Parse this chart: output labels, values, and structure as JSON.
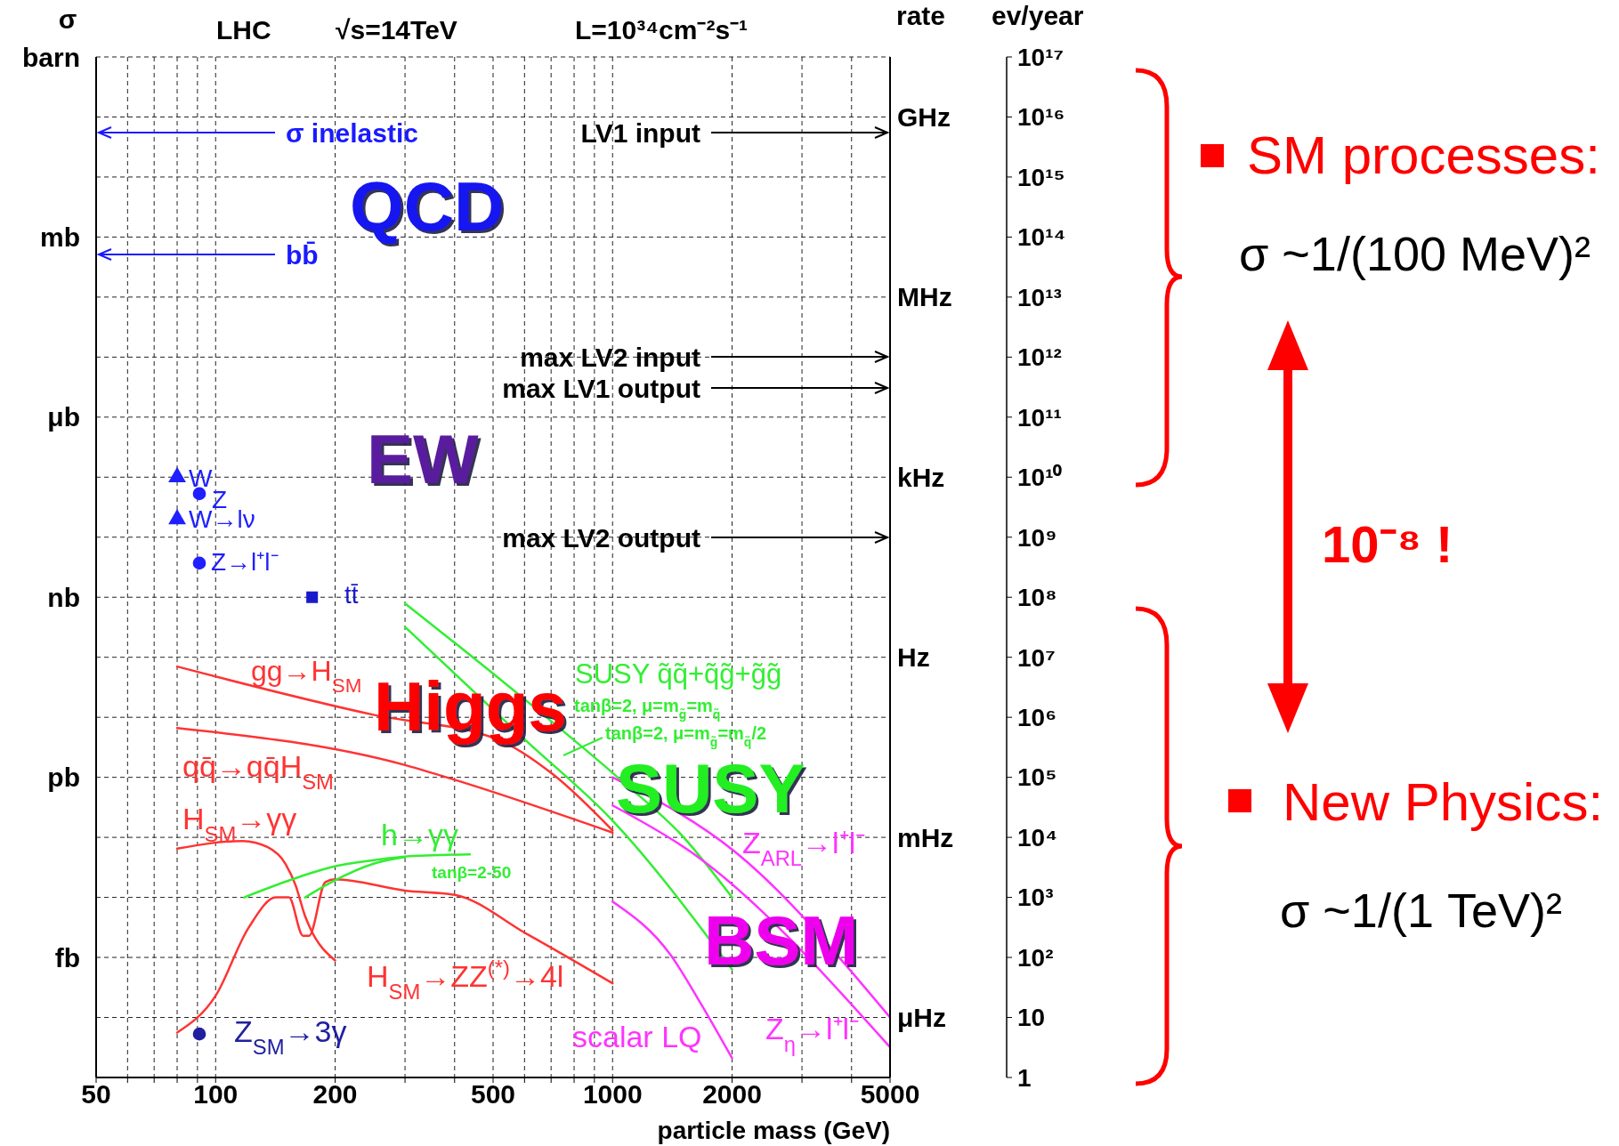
{
  "chart_data": {
    "type": "line",
    "xlabel": "particle mass (GeV)",
    "ylabel": "ev/year",
    "xlim": [
      50,
      5000
    ],
    "xticks": [
      50,
      {
        "value": 60,
        "label": null
      },
      {
        "value": 70,
        "label": null
      },
      {
        "value": 80,
        "label": null
      },
      {
        "value": 90,
        "label": null
      },
      100,
      200,
      {
        "value": 300,
        "label": null
      },
      {
        "value": 400,
        "label": null
      },
      500,
      {
        "value": 600,
        "label": null
      },
      {
        "value": 700,
        "label": null
      },
      {
        "value": 800,
        "label": null
      },
      {
        "value": 900,
        "label": null
      },
      1000,
      2000,
      {
        "value": 3000,
        "label": null
      },
      {
        "value": 4000,
        "label": null
      },
      5000
    ],
    "ylim": [
      1,
      1e+17
    ],
    "yticks": [
      1,
      10,
      {
        "value": 100.0,
        "label": "10²"
      },
      {
        "value": 1000.0,
        "label": "10³"
      },
      {
        "value": 10000.0,
        "label": "10⁴"
      },
      {
        "value": 100000.0,
        "label": "10⁵"
      },
      {
        "value": 1000000.0,
        "label": "10⁶"
      },
      {
        "value": 10000000.0,
        "label": "10⁷"
      },
      {
        "value": 100000000.0,
        "label": "10⁸"
      },
      {
        "value": 1000000000.0,
        "label": "10⁹"
      },
      {
        "value": 10000000000.0,
        "label": "10¹⁰"
      },
      {
        "value": 100000000000.0,
        "label": "10¹¹"
      },
      {
        "value": 1000000000000.0,
        "label": "10¹²"
      },
      {
        "value": 10000000000000.0,
        "label": "10¹³"
      },
      {
        "value": 100000000000000.0,
        "label": "10¹⁴"
      },
      {
        "value": 1000000000000000.0,
        "label": "10¹⁵"
      },
      {
        "value": 1e+16,
        "label": "10¹⁶"
      },
      {
        "value": 1e+17,
        "label": "10¹⁷"
      }
    ],
    "log": "xy",
    "grid": true,
    "series": [
      {
        "name": "gg→H$_{SM}$",
        "color": "#ff3333",
        "x": [
          80,
          250,
          512,
          710,
          1000
        ],
        "values": [
          7000000.0,
          1100000.0,
          430000.0,
          110000.0,
          13000.0
        ]
      },
      {
        "name": "qq̄→qq̄H$_{SM}$",
        "color": "#ff3333",
        "x": [
          80,
          300,
          400,
          1000
        ],
        "values": [
          660000.0,
          160000.0,
          91000.0,
          12000.0
        ]
      },
      {
        "name": "H$_{SM}$→γγ",
        "color": "#ff3333",
        "x": [
          80,
          117,
          135,
          150,
          159,
          168,
          173,
          200
        ],
        "values": [
          6500,
          8700,
          6900,
          3600,
          1600,
          490,
          310,
          89
        ]
      },
      {
        "name": "H$_{SM}$→ZZ$^{(*)}$→4l",
        "color": "#ff3333",
        "x": [
          80,
          100,
          121,
          142,
          153,
          166,
          172,
          189,
          200,
          300,
          400,
          612,
          1000
        ],
        "values": [
          5.6,
          23,
          310,
          1000,
          1000,
          230,
          230,
          1800,
          2000,
          1300,
          1100,
          240,
          37
        ]
      },
      {
        "name": "h→γγ",
        "color": "#33ee33",
        "x": [
          118,
          156,
          196,
          252,
          300,
          437
        ],
        "values": [
          1000,
          2000,
          3200,
          4200,
          4800,
          5200
        ]
      },
      {
        "color": "#33ee33",
        "x": [
          168,
          196,
          252,
          300
        ],
        "values": [
          1000,
          1800,
          3700,
          4700
        ]
      },
      {
        "name": "tanβ=2, μ=m$_{g̃}$=m$_{q̃}$",
        "color": "#33ee33",
        "x": [
          300,
          600,
          1030,
          1510,
          2000
        ],
        "values": [
          79000000.0,
          2000000.0,
          100000.0,
          10000.0,
          1000
        ]
      },
      {
        "name": "tanβ=2, μ=m$_{g̃}$=m$_{q̃}$/2",
        "color": "#33ee33",
        "x": [
          300,
          600,
          1000,
          2000
        ],
        "values": [
          32000000.0,
          430000.0,
          19000.0,
          63
        ]
      },
      {
        "name": "Z$_{ARL}$→l⁺l⁻",
        "color": "#ff33ff",
        "x": [
          1000,
          2030,
          5000
        ],
        "values": [
          100000.0,
          5800,
          10
        ]
      },
      {
        "name": "scalar LQ",
        "color": "#ff33ff",
        "x": [
          1000,
          1400,
          1660,
          2000
        ],
        "values": [
          850,
          110,
          18,
          2.1
        ]
      },
      {
        "name": "Z$_{η}$→l⁺l⁻",
        "color": "#ff33ff",
        "x": [
          1000,
          1570,
          5000
        ],
        "values": [
          34000.0,
          5800,
          3.2
        ]
      },
      {
        "name": "W",
        "type": "scatter",
        "marker": "triangle",
        "color": "#1f1fff",
        "x": [
          80
        ],
        "values": [
          10000000000.0
        ]
      },
      {
        "name": "Z",
        "type": "scatter",
        "marker": "circle",
        "color": "#1f1fff",
        "x": [
          91
        ],
        "values": [
          5300000000.0
        ]
      },
      {
        "name": "W→lν",
        "type": "scatter",
        "marker": "triangle",
        "color": "#1f1fff",
        "x": [
          80
        ],
        "values": [
          2000000000.0
        ]
      },
      {
        "name": "Z→l⁺l⁻",
        "type": "scatter",
        "marker": "circle",
        "color": "#1f1fff",
        "x": [
          91
        ],
        "values": [
          370000000.0
        ]
      },
      {
        "name": "tt̄",
        "type": "scatter",
        "marker": "square",
        "color": "#1a1acc",
        "x": [
          175
        ],
        "values": [
          100000000.0
        ]
      },
      {
        "name": "Z$_{SM}$→3γ",
        "type": "scatter",
        "marker": "circle",
        "color": "#2020a0",
        "x": [
          91
        ],
        "values": [
          5.3
        ]
      }
    ],
    "annotations": [
      "σ",
      "barn",
      "mb",
      "μb",
      "nb",
      "pb",
      "fb",
      "rate",
      "GHz",
      "MHz",
      "kHz",
      "Hz",
      "mHz",
      "μHz",
      "LHC",
      "√s=14TeV",
      "L=10³⁴cm⁻²s⁻¹",
      "QCD",
      "EW",
      "Higgs",
      "SUSY",
      "BSM",
      "SUSY q̃q̃+q̃g̃+g̃g̃",
      "tanβ=2-50",
      "SM processes:",
      "σ ~1/(100 MeV)²",
      "10⁻⁸ !",
      "New Physics:",
      "σ ~1/(1 TeV)²",
      "σ inelastic",
      "bb̄",
      "LV1 input",
      "max LV2 input",
      "max LV1 output",
      "max LV2 output"
    ]
  }
}
